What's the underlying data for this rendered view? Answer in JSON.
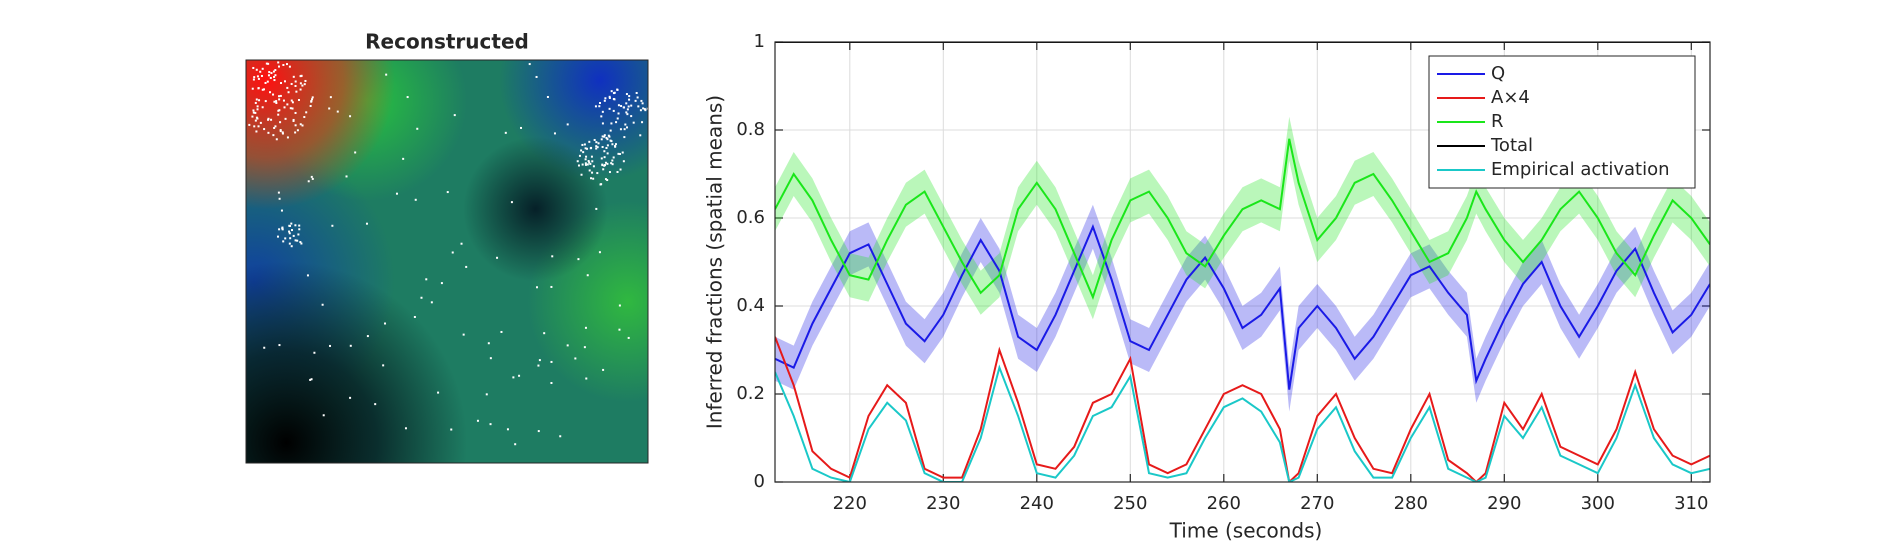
{
  "panel": {
    "title": "Reconstructed"
  },
  "chart_data": {
    "type": "line",
    "xlabel": "Time (seconds)",
    "ylabel": "Inferred fractions (spatial means)",
    "x": [
      212,
      214,
      216,
      218,
      220,
      222,
      224,
      226,
      228,
      230,
      232,
      234,
      236,
      238,
      240,
      242,
      244,
      246,
      248,
      250,
      252,
      254,
      256,
      258,
      260,
      262,
      264,
      266,
      267,
      268,
      270,
      272,
      274,
      276,
      278,
      280,
      282,
      284,
      286,
      287,
      288,
      290,
      292,
      294,
      296,
      298,
      300,
      302,
      304,
      306,
      308,
      310,
      312
    ],
    "series": [
      {
        "name": "Q",
        "color": "#1a1ae6",
        "error": 0.05,
        "values": [
          0.28,
          0.26,
          0.36,
          0.44,
          0.52,
          0.54,
          0.45,
          0.36,
          0.32,
          0.38,
          0.47,
          0.55,
          0.48,
          0.33,
          0.3,
          0.38,
          0.48,
          0.58,
          0.46,
          0.32,
          0.3,
          0.38,
          0.46,
          0.51,
          0.44,
          0.35,
          0.38,
          0.44,
          0.21,
          0.35,
          0.4,
          0.35,
          0.28,
          0.33,
          0.4,
          0.47,
          0.49,
          0.43,
          0.38,
          0.23,
          0.28,
          0.37,
          0.45,
          0.5,
          0.4,
          0.33,
          0.4,
          0.48,
          0.53,
          0.43,
          0.34,
          0.38,
          0.45
        ]
      },
      {
        "name": "A×4",
        "color": "#e61a1a",
        "values": [
          0.33,
          0.22,
          0.07,
          0.03,
          0.01,
          0.15,
          0.22,
          0.18,
          0.03,
          0.01,
          0.01,
          0.12,
          0.3,
          0.18,
          0.04,
          0.03,
          0.08,
          0.18,
          0.2,
          0.28,
          0.04,
          0.02,
          0.04,
          0.12,
          0.2,
          0.22,
          0.2,
          0.12,
          0,
          0.02,
          0.15,
          0.2,
          0.1,
          0.03,
          0.02,
          0.12,
          0.2,
          0.05,
          0.02,
          0,
          0.02,
          0.18,
          0.12,
          0.2,
          0.08,
          0.06,
          0.04,
          0.12,
          0.25,
          0.12,
          0.06,
          0.04,
          0.06
        ]
      },
      {
        "name": "R",
        "color": "#1ae61a",
        "error": 0.05,
        "values": [
          0.62,
          0.7,
          0.64,
          0.55,
          0.47,
          0.46,
          0.55,
          0.63,
          0.66,
          0.58,
          0.5,
          0.43,
          0.47,
          0.62,
          0.68,
          0.62,
          0.52,
          0.42,
          0.55,
          0.64,
          0.66,
          0.6,
          0.52,
          0.49,
          0.56,
          0.62,
          0.64,
          0.62,
          0.78,
          0.68,
          0.55,
          0.6,
          0.68,
          0.7,
          0.64,
          0.57,
          0.5,
          0.52,
          0.6,
          0.66,
          0.62,
          0.55,
          0.5,
          0.55,
          0.62,
          0.66,
          0.6,
          0.52,
          0.47,
          0.56,
          0.64,
          0.6,
          0.54
        ]
      },
      {
        "name": "Total",
        "color": "#000000",
        "values": [
          1,
          1,
          1,
          1,
          1,
          1,
          1,
          1,
          1,
          1,
          1,
          1,
          1,
          1,
          1,
          1,
          1,
          1,
          1,
          1,
          1,
          1,
          1,
          1,
          1,
          1,
          1,
          1,
          1,
          1,
          1,
          1,
          1,
          1,
          1,
          1,
          1,
          1,
          1,
          1,
          1,
          1,
          1,
          1,
          1,
          1,
          1,
          1,
          1,
          1,
          1,
          1,
          1
        ]
      },
      {
        "name": "Empirical activation",
        "color": "#1ac8c8",
        "values": [
          0.25,
          0.15,
          0.03,
          0.01,
          0,
          0.12,
          0.18,
          0.14,
          0.02,
          0,
          0,
          0.1,
          0.26,
          0.15,
          0.02,
          0.01,
          0.06,
          0.15,
          0.17,
          0.24,
          0.02,
          0.01,
          0.02,
          0.1,
          0.17,
          0.19,
          0.16,
          0.09,
          0,
          0.01,
          0.12,
          0.17,
          0.07,
          0.01,
          0.01,
          0.1,
          0.17,
          0.03,
          0.01,
          0,
          0.01,
          0.15,
          0.1,
          0.17,
          0.06,
          0.04,
          0.02,
          0.1,
          0.22,
          0.1,
          0.04,
          0.02,
          0.03
        ]
      }
    ],
    "xlim": [
      212,
      312
    ],
    "ylim": [
      0,
      1
    ],
    "xticks": [
      220,
      230,
      240,
      250,
      260,
      270,
      280,
      290,
      300,
      310
    ],
    "yticks": [
      0,
      0.2,
      0.4,
      0.6,
      0.8,
      1
    ],
    "grid": true,
    "legend": "northeast"
  }
}
